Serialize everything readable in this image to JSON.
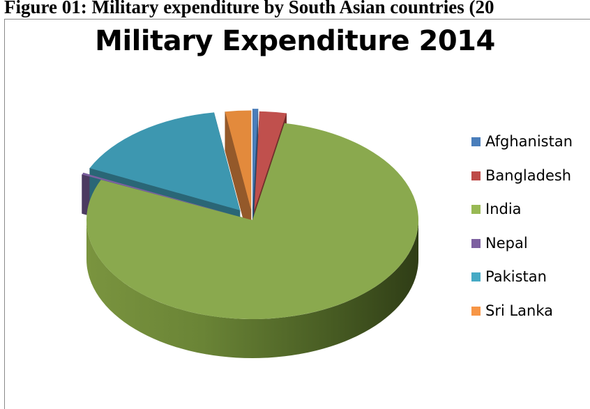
{
  "figure_caption": "Figure 01: Military expenditure by South Asian countries (20",
  "chart_data": {
    "type": "pie",
    "title": "Military Expenditure 2014",
    "legend_position": "right",
    "style": "3d-exploded",
    "categories": [
      "Afghanistan",
      "Bangladesh",
      "India",
      "Nepal",
      "Pakistan",
      "Sri Lanka"
    ],
    "values": [
      0.5,
      2.6,
      78.6,
      0.3,
      15.5,
      2.5
    ],
    "unit": "percent of total",
    "colors": [
      "#4a7ebb",
      "#be4b48",
      "#98b954",
      "#7d60a0",
      "#46aac5",
      "#f79646"
    ],
    "side_colors": [
      "#2c4c72",
      "#722d2b",
      "#5b6f32",
      "#4b3a60",
      "#2a6676",
      "#94592a"
    ],
    "top_colors": [
      "#4a7ebb",
      "#c0504d",
      "#8aa94e",
      "#7d60a0",
      "#3d97b0",
      "#e38a3c"
    ]
  }
}
